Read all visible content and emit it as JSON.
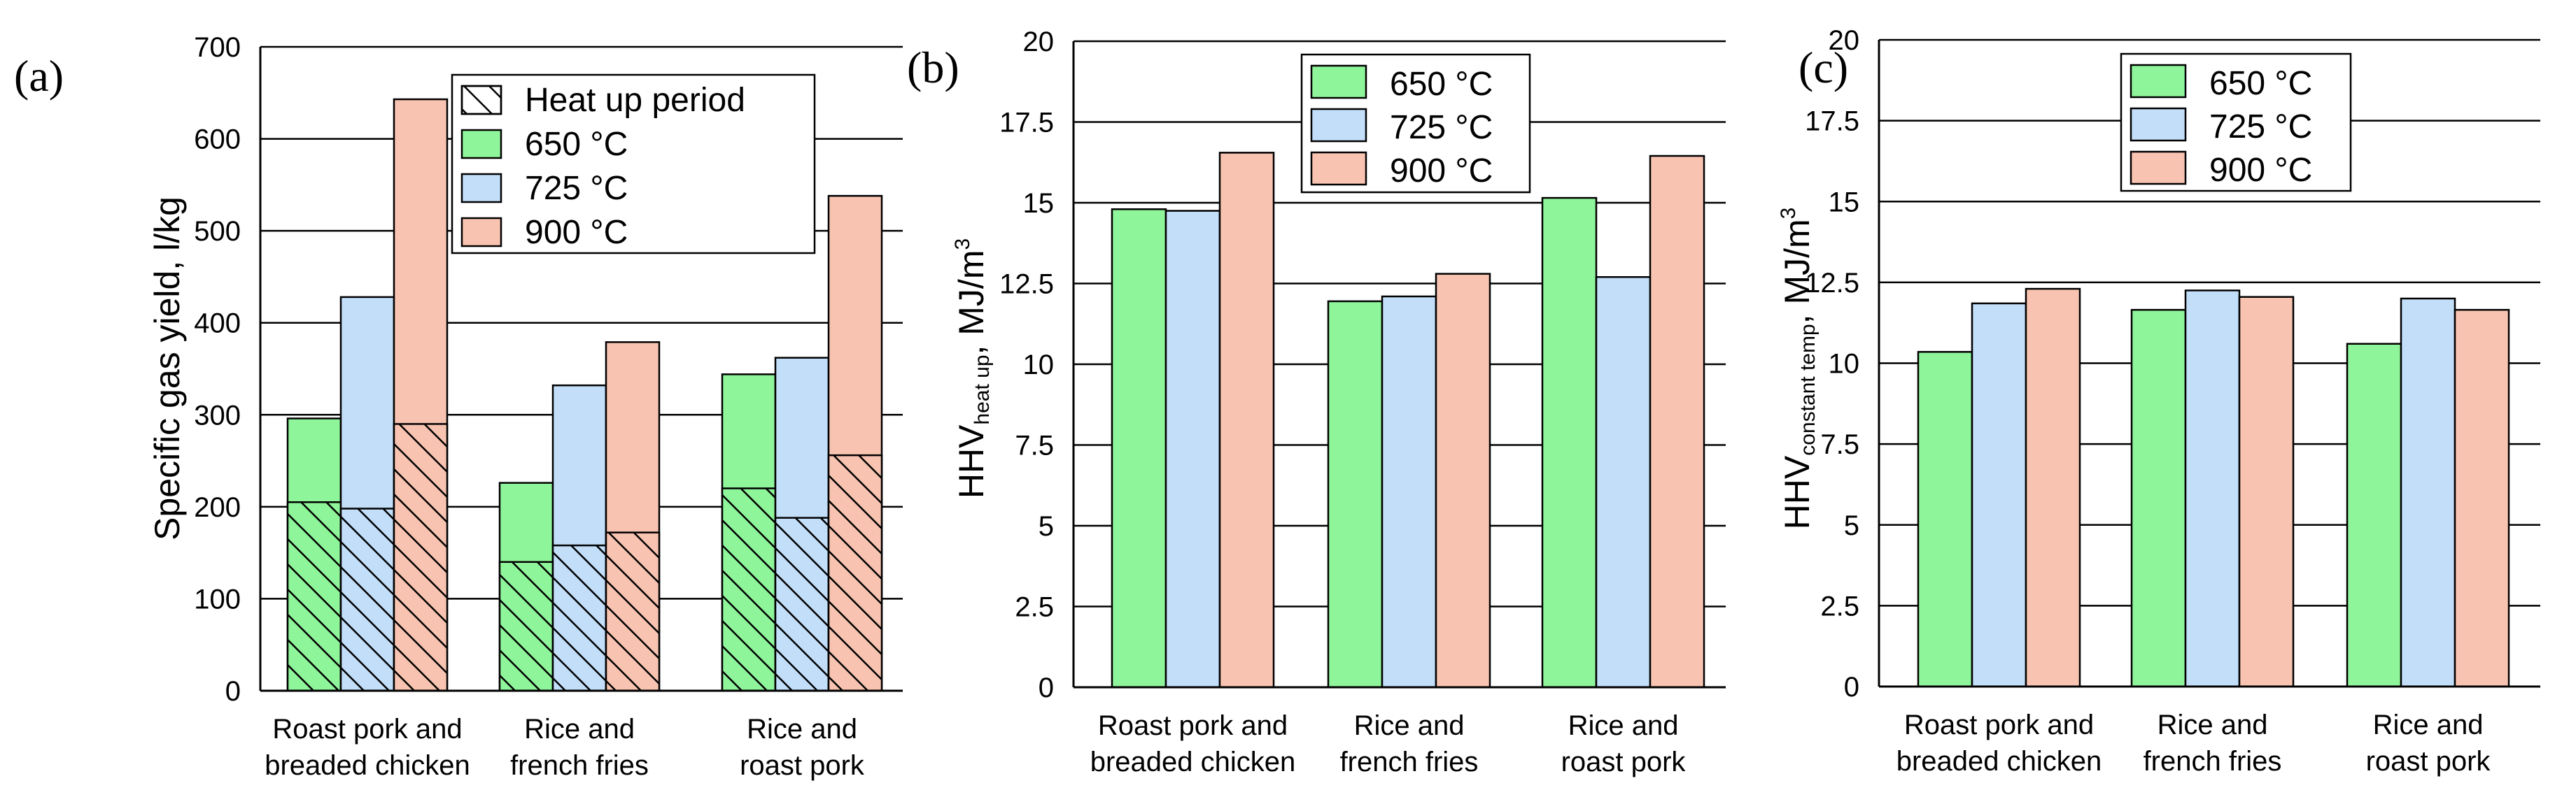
{
  "figure": {
    "colors": {
      "650": "#8ff59a",
      "725": "#c2def9",
      "900": "#f8c3b1",
      "stroke": "#000000",
      "grid": "#000000"
    }
  },
  "chart_data": [
    {
      "panel": "(a)",
      "type": "bar",
      "stacked": true,
      "categories": [
        [
          "Roast pork and",
          "breaded chicken"
        ],
        [
          "Rice and",
          "french fries"
        ],
        [
          "Rice and",
          "roast pork"
        ]
      ],
      "ylabel": "Specific gas yield, l/kg",
      "ylim": [
        0,
        700
      ],
      "yticks": [
        "0",
        "100",
        "200",
        "300",
        "400",
        "500",
        "600",
        "700"
      ],
      "ytick_values": [
        0,
        100,
        200,
        300,
        400,
        500,
        600,
        700
      ],
      "grid": true,
      "legend_position": "top-right",
      "legend": [
        {
          "label": "Heat up period",
          "key": "hatch"
        },
        {
          "label": "650 °C",
          "key": "650"
        },
        {
          "label": "725 °C",
          "key": "725"
        },
        {
          "label": "900 °C",
          "key": "900"
        }
      ],
      "series": [
        {
          "name": "650 °C",
          "key": "650",
          "heat_up": [
            205,
            140,
            220
          ],
          "total": [
            296,
            226,
            344
          ]
        },
        {
          "name": "725 °C",
          "key": "725",
          "heat_up": [
            198,
            158,
            188
          ],
          "total": [
            428,
            332,
            362
          ]
        },
        {
          "name": "900 °C",
          "key": "900",
          "heat_up": [
            290,
            172,
            256
          ],
          "total": [
            643,
            379,
            538
          ]
        }
      ]
    },
    {
      "panel": "(b)",
      "type": "bar",
      "categories": [
        [
          "Roast pork and",
          "breaded chicken"
        ],
        [
          "Rice and",
          "french fries"
        ],
        [
          "Rice and",
          "roast pork"
        ]
      ],
      "ylabel": {
        "main": "HHV",
        "sub": "heat up",
        "unit": ", MJ/m",
        "sup": "3"
      },
      "ylim": [
        0,
        20
      ],
      "yticks": [
        "0",
        "2.5",
        "5",
        "7.5",
        "10",
        "12.5",
        "15",
        "17.5",
        "20"
      ],
      "ytick_values": [
        0,
        2.5,
        5,
        7.5,
        10,
        12.5,
        15,
        17.5,
        20
      ],
      "grid": true,
      "legend_position": "top-center",
      "legend": [
        {
          "label": "650 °C",
          "key": "650"
        },
        {
          "label": "725 °C",
          "key": "725"
        },
        {
          "label": "900 °C",
          "key": "900"
        }
      ],
      "series": [
        {
          "name": "650 °C",
          "key": "650",
          "values": [
            14.8,
            11.95,
            15.15
          ]
        },
        {
          "name": "725 °C",
          "key": "725",
          "values": [
            14.75,
            12.1,
            12.7
          ]
        },
        {
          "name": "900 °C",
          "key": "900",
          "values": [
            16.55,
            12.8,
            16.45
          ]
        }
      ]
    },
    {
      "panel": "(c)",
      "type": "bar",
      "categories": [
        [
          "Roast pork and",
          "breaded chicken"
        ],
        [
          "Rice and",
          "french fries"
        ],
        [
          "Rice and",
          "roast pork"
        ]
      ],
      "ylabel": {
        "main": "HHV",
        "sub": "constant temp",
        "unit": ", MJ/m",
        "sup": "3"
      },
      "ylim": [
        0,
        20
      ],
      "yticks": [
        "0",
        "2.5",
        "5",
        "7.5",
        "10",
        "12.5",
        "15",
        "17.5",
        "20"
      ],
      "ytick_values": [
        0,
        2.5,
        5,
        7.5,
        10,
        12.5,
        15,
        17.5,
        20
      ],
      "grid": true,
      "legend_position": "top-center",
      "legend": [
        {
          "label": "650 °C",
          "key": "650"
        },
        {
          "label": "725 °C",
          "key": "725"
        },
        {
          "label": "900 °C",
          "key": "900"
        }
      ],
      "series": [
        {
          "name": "650 °C",
          "key": "650",
          "values": [
            10.35,
            11.65,
            10.6
          ]
        },
        {
          "name": "725 °C",
          "key": "725",
          "values": [
            11.85,
            12.25,
            12.0
          ]
        },
        {
          "name": "900 °C",
          "key": "900",
          "values": [
            12.3,
            12.05,
            11.65
          ]
        }
      ]
    }
  ]
}
